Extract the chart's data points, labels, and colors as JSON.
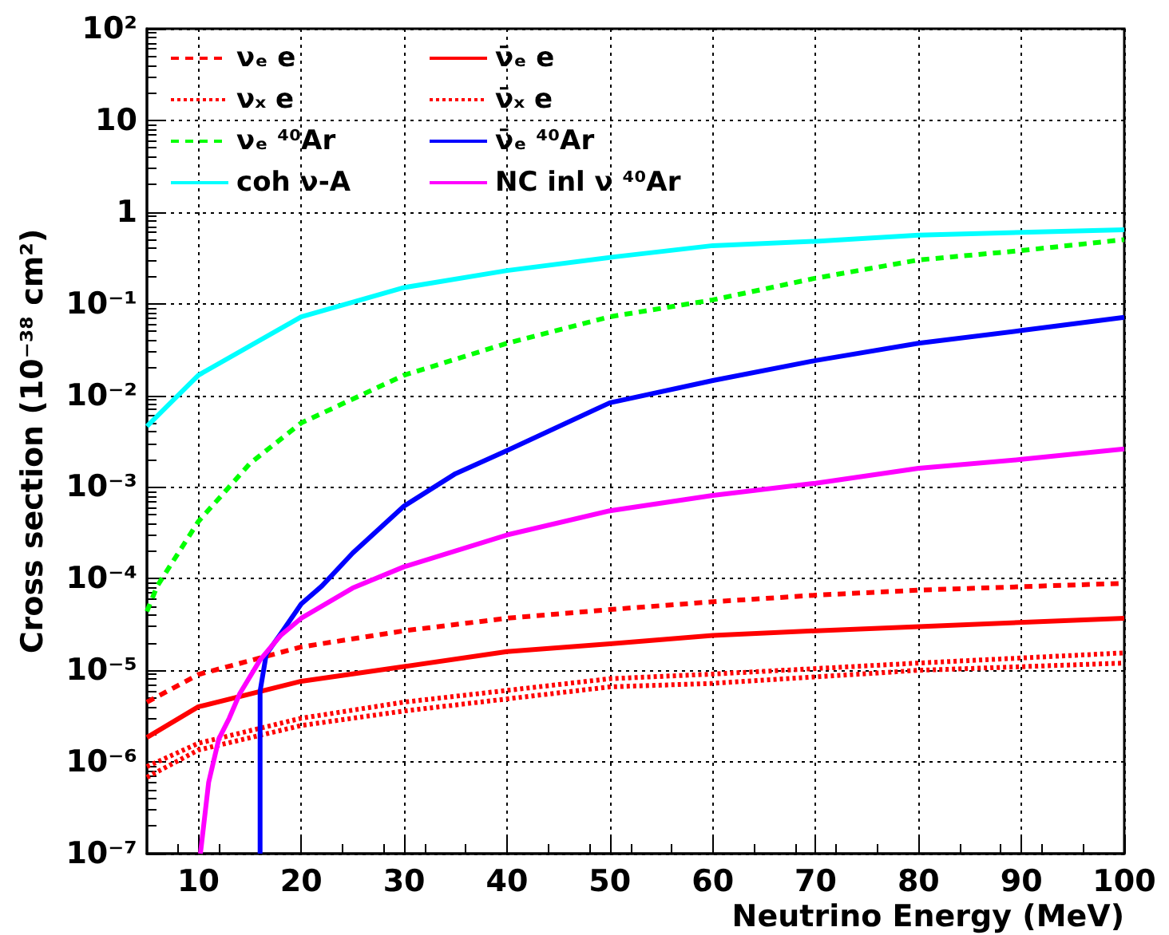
{
  "chart_data": {
    "type": "line",
    "xlabel": "Neutrino Energy (MeV)",
    "ylabel": "Cross section (10⁻³⁸ cm²)",
    "xlim": [
      5,
      100
    ],
    "xticks": [
      10,
      20,
      30,
      40,
      50,
      60,
      70,
      80,
      90,
      100
    ],
    "ylim": [
      1e-07,
      100
    ],
    "yticks": [
      {
        "value": 1e-07,
        "label": "10⁻⁷"
      },
      {
        "value": 1e-06,
        "label": "10⁻⁶"
      },
      {
        "value": 1e-05,
        "label": "10⁻⁵"
      },
      {
        "value": 0.0001,
        "label": "10⁻⁴"
      },
      {
        "value": 0.001,
        "label": "10⁻³"
      },
      {
        "value": 0.01,
        "label": "10⁻²"
      },
      {
        "value": 0.1,
        "label": "10⁻¹"
      },
      {
        "value": 1,
        "label": "1"
      },
      {
        "value": 10,
        "label": "10"
      },
      {
        "value": 100,
        "label": "10²"
      }
    ],
    "log": "y",
    "grid": true,
    "legend": "top left",
    "marker": "none",
    "series": [
      {
        "name": "νₑ e",
        "color": "#ff0000",
        "line_style": "dashed",
        "x": [
          5,
          10,
          20,
          30,
          40,
          50,
          60,
          70,
          80,
          100
        ],
        "values": [
          4.5e-06,
          9e-06,
          1.8e-05,
          2.7e-05,
          3.7e-05,
          4.6e-05,
          5.6e-05,
          6.6e-05,
          7.5e-05,
          8.9e-05
        ]
      },
      {
        "name": "ν̄ₑ e",
        "color": "#ff0000",
        "line_style": "solid",
        "x": [
          5,
          10,
          20,
          30,
          40,
          50,
          60,
          70,
          80,
          100
        ],
        "values": [
          1.85e-06,
          4e-06,
          7.6e-06,
          1.1e-05,
          1.6e-05,
          1.95e-05,
          2.4e-05,
          2.7e-05,
          3e-05,
          3.7e-05
        ]
      },
      {
        "name": "νₓ e",
        "color": "#ff0000",
        "line_style": "dotted",
        "x": [
          5,
          10,
          20,
          30,
          50,
          60,
          80,
          100
        ],
        "values": [
          8.9e-07,
          1.6e-06,
          3e-06,
          4.5e-06,
          8.1e-06,
          9.1e-06,
          1.2e-05,
          1.55e-05
        ]
      },
      {
        "name": "ν̄ₓ e",
        "color": "#ff0000",
        "line_style": "dotted",
        "x": [
          5,
          10,
          20,
          30,
          50,
          60,
          80,
          100
        ],
        "values": [
          6.8e-07,
          1.35e-06,
          2.5e-06,
          3.6e-06,
          6.6e-06,
          7.2e-06,
          1e-05,
          1.2e-05
        ]
      },
      {
        "name": "νₑ ⁴⁰Ar",
        "color": "#00ff00",
        "line_style": "dashed",
        "x": [
          5,
          6,
          10,
          15,
          20,
          30,
          40,
          50,
          60,
          70,
          80,
          90,
          100
        ],
        "values": [
          4.4e-05,
          8.3e-05,
          0.00042,
          0.0018,
          0.005,
          0.0166,
          0.037,
          0.072,
          0.11,
          0.19,
          0.3,
          0.38,
          0.5
        ]
      },
      {
        "name": "ν̄ₑ ⁴⁰Ar",
        "color": "#0000ff",
        "line_style": "solid",
        "x": [
          16,
          16,
          16.6,
          18,
          20,
          22,
          25,
          30,
          35,
          40,
          50,
          60,
          70,
          80,
          90,
          100
        ],
        "values": [
          1e-07,
          5.9e-06,
          1.5e-05,
          2.5e-05,
          5.3e-05,
          8.3e-05,
          0.00019,
          0.00062,
          0.0014,
          0.0025,
          0.0083,
          0.0145,
          0.024,
          0.037,
          0.051,
          0.071
        ]
      },
      {
        "name": "coh ν-A",
        "color": "#00ffff",
        "line_style": "solid",
        "x": [
          5,
          10,
          20,
          30,
          40,
          50,
          60,
          70,
          80,
          100
        ],
        "values": [
          0.0046,
          0.0166,
          0.072,
          0.15,
          0.23,
          0.32,
          0.43,
          0.48,
          0.56,
          0.64
        ]
      },
      {
        "name": "NC inl ν ⁴⁰Ar",
        "color": "#ff00ff",
        "line_style": "solid",
        "x": [
          10.2,
          11,
          12,
          13,
          14,
          16,
          18,
          20,
          25,
          30,
          40,
          50,
          60,
          70,
          80,
          90,
          100
        ],
        "values": [
          1e-07,
          6e-07,
          1.8e-06,
          3e-06,
          5.5e-06,
          1.3e-05,
          2.4e-05,
          3.7e-05,
          7.9e-05,
          0.000135,
          0.0003,
          0.00055,
          0.00081,
          0.0011,
          0.0016,
          0.002,
          0.0026
        ]
      }
    ]
  }
}
